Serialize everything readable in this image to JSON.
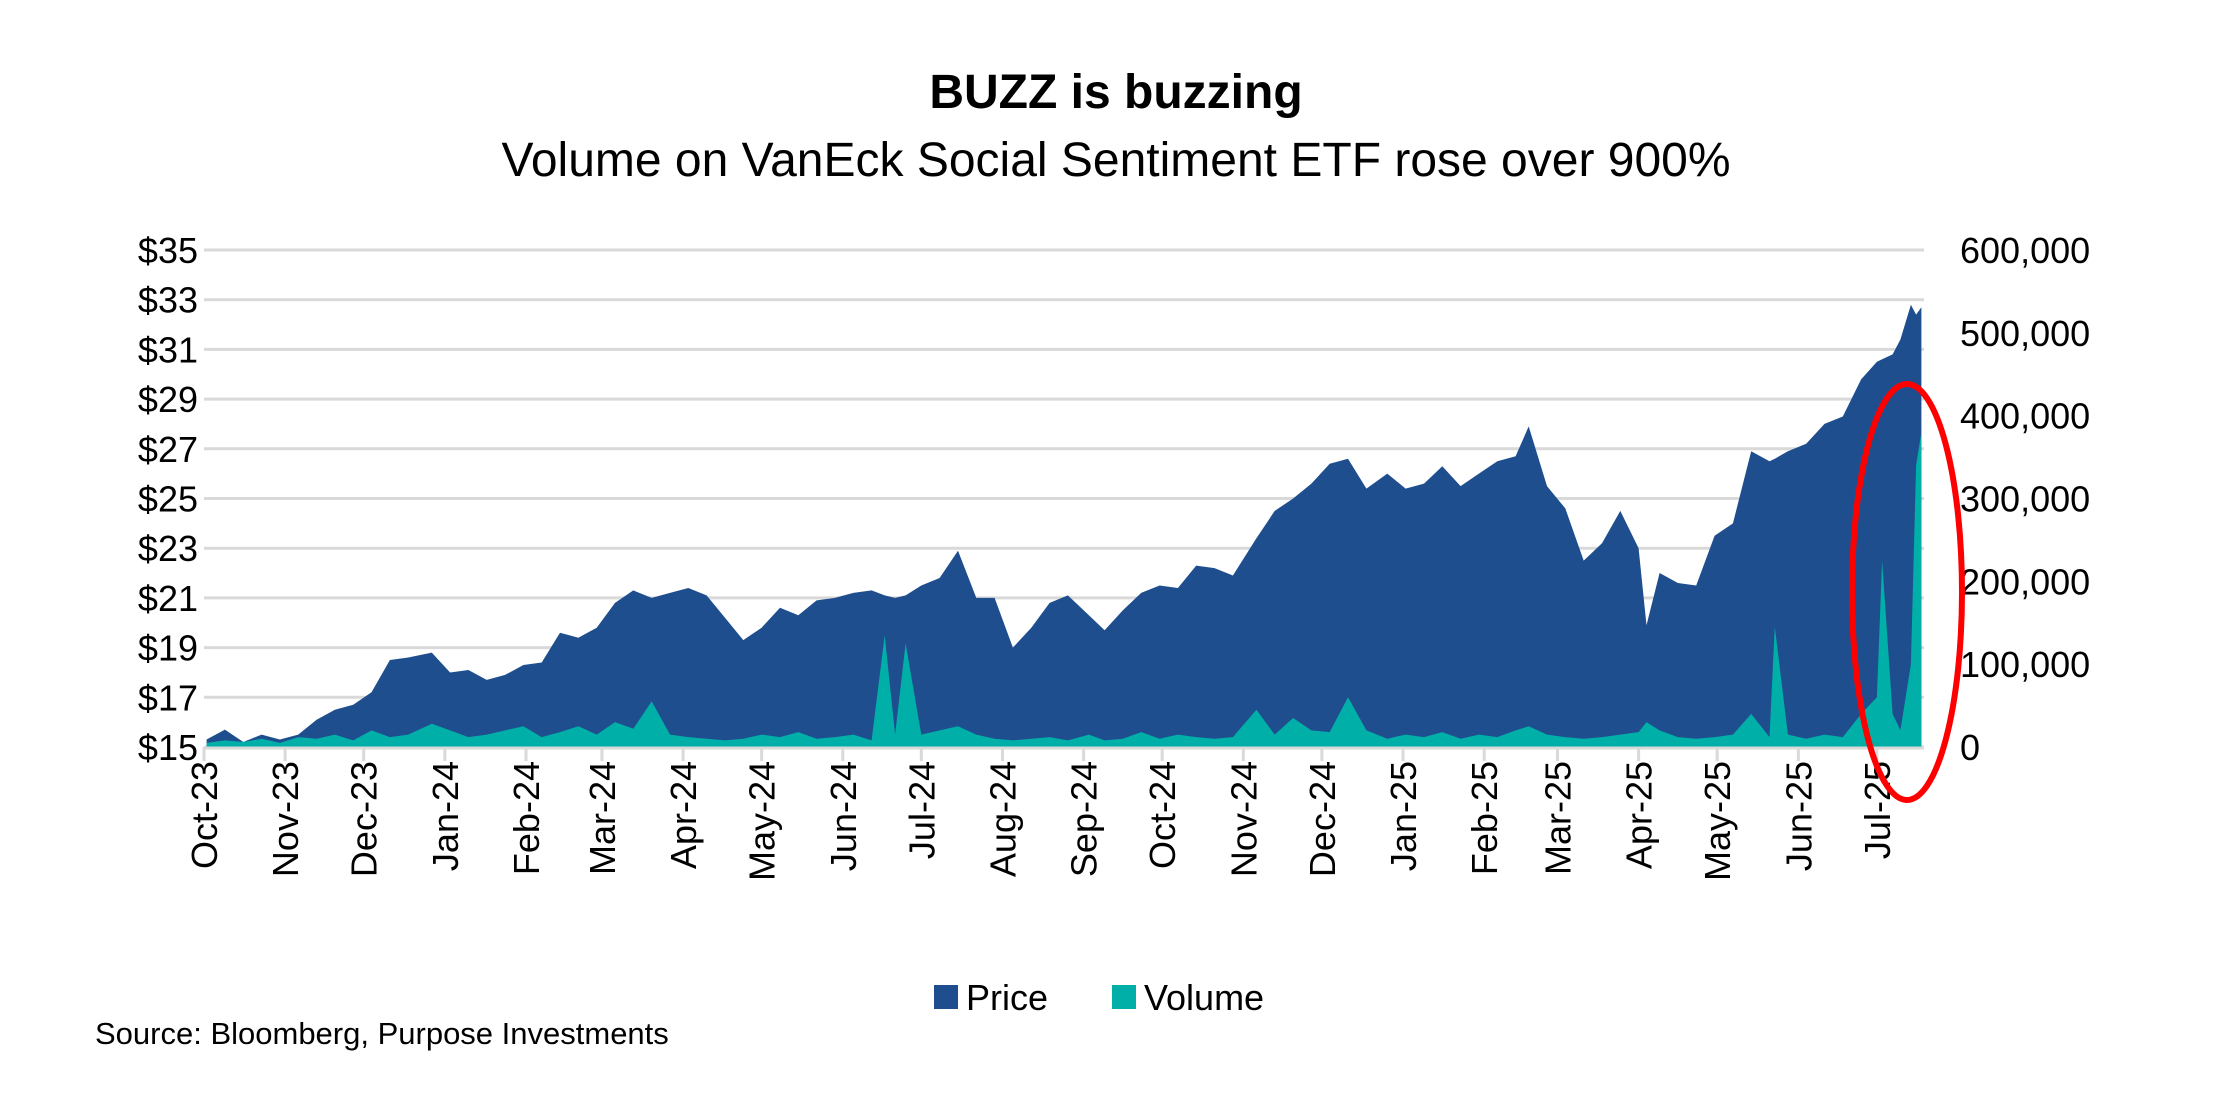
{
  "chart_data": {
    "type": "area",
    "title": "BUZZ is buzzing",
    "subtitle": "Volume on VanEck Social Sentiment ETF rose over 900%",
    "xlabel": "",
    "ylabel": "",
    "y_left": {
      "min": 15,
      "max": 35,
      "step": 2,
      "prefix": "$",
      "ticks": [
        "$15",
        "$17",
        "$19",
        "$21",
        "$23",
        "$25",
        "$27",
        "$29",
        "$31",
        "$33",
        "$35"
      ]
    },
    "y_right": {
      "min": 0,
      "max": 600000,
      "step": 100000,
      "ticks": [
        "0",
        "100,000",
        "200,000",
        "300,000",
        "400,000",
        "500,000",
        "600,000"
      ]
    },
    "x_ticks": [
      "Oct-23",
      "Nov-23",
      "Dec-23",
      "Jan-24",
      "Feb-24",
      "Mar-24",
      "Apr-24",
      "May-24",
      "Jun-24",
      "Jul-24",
      "Aug-24",
      "Sep-24",
      "Oct-24",
      "Nov-24",
      "Dec-24",
      "Jan-25",
      "Feb-25",
      "Mar-25",
      "Apr-25",
      "May-25",
      "Jun-25",
      "Jul-25"
    ],
    "xlim": [
      "2023-10-01",
      "2025-07-19"
    ],
    "grid": true,
    "legend_position": "bottom",
    "series": [
      {
        "name": "Price",
        "axis": "left",
        "color": "#1F4E8F"
      },
      {
        "name": "Volume",
        "axis": "right",
        "color": "#00B0A8"
      }
    ],
    "points": [
      [
        "2023-10-02",
        15.3,
        5000
      ],
      [
        "2023-10-09",
        15.7,
        8000
      ],
      [
        "2023-10-16",
        15.2,
        6000
      ],
      [
        "2023-10-23",
        15.5,
        10000
      ],
      [
        "2023-10-30",
        15.3,
        5000
      ],
      [
        "2023-11-06",
        15.5,
        12000
      ],
      [
        "2023-11-13",
        16.1,
        10000
      ],
      [
        "2023-11-20",
        16.5,
        15000
      ],
      [
        "2023-11-27",
        16.7,
        8000
      ],
      [
        "2023-12-04",
        17.2,
        20000
      ],
      [
        "2023-12-11",
        18.5,
        12000
      ],
      [
        "2023-12-18",
        18.6,
        15000
      ],
      [
        "2023-12-27",
        18.8,
        28000
      ],
      [
        "2024-01-03",
        18.0,
        20000
      ],
      [
        "2024-01-10",
        18.1,
        12000
      ],
      [
        "2024-01-17",
        17.7,
        15000
      ],
      [
        "2024-01-24",
        17.9,
        20000
      ],
      [
        "2024-01-31",
        18.3,
        25000
      ],
      [
        "2024-02-07",
        18.4,
        12000
      ],
      [
        "2024-02-14",
        19.6,
        18000
      ],
      [
        "2024-02-21",
        19.4,
        25000
      ],
      [
        "2024-02-28",
        19.8,
        15000
      ],
      [
        "2024-03-06",
        20.8,
        30000
      ],
      [
        "2024-03-13",
        21.3,
        22000
      ],
      [
        "2024-03-20",
        21.0,
        55000
      ],
      [
        "2024-03-27",
        21.2,
        15000
      ],
      [
        "2024-04-03",
        21.4,
        12000
      ],
      [
        "2024-04-10",
        21.1,
        10000
      ],
      [
        "2024-04-17",
        20.2,
        8000
      ],
      [
        "2024-04-24",
        19.3,
        10000
      ],
      [
        "2024-05-01",
        19.8,
        15000
      ],
      [
        "2024-05-08",
        20.6,
        12000
      ],
      [
        "2024-05-15",
        20.3,
        18000
      ],
      [
        "2024-05-22",
        20.9,
        10000
      ],
      [
        "2024-05-29",
        21.0,
        12000
      ],
      [
        "2024-06-05",
        21.2,
        15000
      ],
      [
        "2024-06-12",
        21.3,
        8000
      ],
      [
        "2024-06-17",
        21.1,
        135000
      ],
      [
        "2024-06-21",
        21.0,
        15000
      ],
      [
        "2024-06-25",
        21.1,
        125000
      ],
      [
        "2024-07-01",
        21.5,
        15000
      ],
      [
        "2024-07-08",
        21.8,
        20000
      ],
      [
        "2024-07-15",
        22.9,
        25000
      ],
      [
        "2024-07-22",
        21.0,
        15000
      ],
      [
        "2024-07-29",
        21.0,
        10000
      ],
      [
        "2024-08-05",
        19.0,
        8000
      ],
      [
        "2024-08-12",
        19.8,
        10000
      ],
      [
        "2024-08-19",
        20.8,
        12000
      ],
      [
        "2024-08-26",
        21.1,
        8000
      ],
      [
        "2024-09-03",
        20.3,
        15000
      ],
      [
        "2024-09-09",
        19.7,
        8000
      ],
      [
        "2024-09-16",
        20.5,
        10000
      ],
      [
        "2024-09-23",
        21.2,
        18000
      ],
      [
        "2024-09-30",
        21.5,
        10000
      ],
      [
        "2024-10-07",
        21.4,
        15000
      ],
      [
        "2024-10-14",
        22.3,
        12000
      ],
      [
        "2024-10-21",
        22.2,
        10000
      ],
      [
        "2024-10-28",
        21.9,
        12000
      ],
      [
        "2024-11-06",
        23.4,
        45000
      ],
      [
        "2024-11-13",
        24.5,
        15000
      ],
      [
        "2024-11-20",
        25.0,
        35000
      ],
      [
        "2024-11-27",
        25.6,
        20000
      ],
      [
        "2024-12-04",
        26.4,
        18000
      ],
      [
        "2024-12-11",
        26.6,
        60000
      ],
      [
        "2024-12-18",
        25.4,
        20000
      ],
      [
        "2024-12-26",
        26.0,
        10000
      ],
      [
        "2025-01-02",
        25.4,
        15000
      ],
      [
        "2025-01-09",
        25.6,
        12000
      ],
      [
        "2025-01-16",
        26.3,
        18000
      ],
      [
        "2025-01-23",
        25.5,
        10000
      ],
      [
        "2025-01-30",
        26.0,
        15000
      ],
      [
        "2025-02-06",
        26.5,
        12000
      ],
      [
        "2025-02-13",
        26.7,
        20000
      ],
      [
        "2025-02-18",
        27.9,
        25000
      ],
      [
        "2025-02-25",
        25.5,
        15000
      ],
      [
        "2025-03-04",
        24.6,
        12000
      ],
      [
        "2025-03-11",
        22.5,
        10000
      ],
      [
        "2025-03-18",
        23.2,
        12000
      ],
      [
        "2025-03-25",
        24.5,
        15000
      ],
      [
        "2025-04-01",
        23.0,
        18000
      ],
      [
        "2025-04-04",
        19.9,
        30000
      ],
      [
        "2025-04-09",
        22.0,
        20000
      ],
      [
        "2025-04-16",
        21.6,
        12000
      ],
      [
        "2025-04-23",
        21.5,
        10000
      ],
      [
        "2025-04-30",
        23.5,
        12000
      ],
      [
        "2025-05-07",
        24.0,
        15000
      ],
      [
        "2025-05-14",
        26.9,
        40000
      ],
      [
        "2025-05-21",
        26.5,
        12000
      ],
      [
        "2025-05-23",
        26.6,
        145000
      ],
      [
        "2025-05-28",
        26.9,
        15000
      ],
      [
        "2025-06-04",
        27.2,
        10000
      ],
      [
        "2025-06-11",
        28.0,
        15000
      ],
      [
        "2025-06-18",
        28.3,
        12000
      ],
      [
        "2025-06-25",
        29.8,
        40000
      ],
      [
        "2025-07-01",
        30.5,
        60000
      ],
      [
        "2025-07-03",
        30.6,
        225000
      ],
      [
        "2025-07-07",
        30.8,
        40000
      ],
      [
        "2025-07-10",
        31.4,
        20000
      ],
      [
        "2025-07-14",
        32.8,
        100000
      ],
      [
        "2025-07-16",
        32.4,
        340000
      ],
      [
        "2025-07-18",
        32.7,
        380000
      ]
    ],
    "annotation": {
      "shape": "ellipse",
      "color": "#FF0000",
      "highlights": "July 2025 volume surge"
    }
  },
  "legend": {
    "price_label": "Price",
    "volume_label": "Volume"
  },
  "source": "Source: Bloomberg, Purpose Investments"
}
